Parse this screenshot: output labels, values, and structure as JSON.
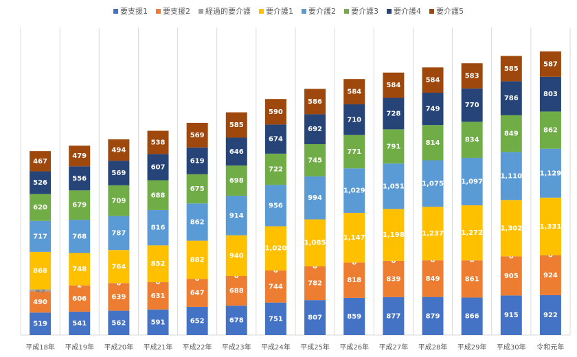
{
  "chart_data": {
    "type": "stacked_bar",
    "categories": [
      "平成18年",
      "平成19年",
      "平成20年",
      "平成21年",
      "平成22年",
      "平成23年",
      "平成24年",
      "平成25年",
      "平成26年",
      "平成27年",
      "平成28年",
      "平成29年",
      "平成30年",
      "令和元年"
    ],
    "ylim": [
      0,
      7000
    ],
    "grid": true,
    "legend": "top",
    "series": [
      {
        "name": "要支援1",
        "color": "#4472c4",
        "values": [
          519,
          541,
          562,
          591,
          652,
          678,
          751,
          807,
          859,
          877,
          879,
          866,
          915,
          922
        ]
      },
      {
        "name": "要支援2",
        "color": "#ed7d31",
        "values": [
          490,
          606,
          639,
          631,
          647,
          688,
          744,
          782,
          818,
          839,
          849,
          861,
          905,
          924
        ]
      },
      {
        "name": "経過的要介護",
        "color": "#a5a5a5",
        "values": [
          45,
          2,
          0,
          0,
          0,
          0,
          0,
          0,
          0,
          0,
          0,
          0,
          0,
          0
        ]
      },
      {
        "name": "要介護1",
        "color": "#ffc000",
        "values": [
          868,
          748,
          764,
          852,
          882,
          940,
          1020,
          1085,
          1147,
          1198,
          1237,
          1272,
          1302,
          1331
        ],
        "value_labels": [
          "868",
          "748",
          "764",
          "852",
          "882",
          "940",
          "1,020",
          "1,085",
          "1,147",
          "1,198",
          "1,237",
          "1,272",
          "1,302",
          "1,331"
        ]
      },
      {
        "name": "要介護2",
        "color": "#5b9bd5",
        "values": [
          717,
          768,
          787,
          816,
          862,
          914,
          956,
          994,
          1029,
          1051,
          1075,
          1097,
          1110,
          1129
        ],
        "value_labels": [
          "717",
          "768",
          "787",
          "816",
          "862",
          "914",
          "956",
          "994",
          "1,029",
          "1,051",
          "1,075",
          "1,097",
          "1,110",
          "1,129"
        ]
      },
      {
        "name": "要介護3",
        "color": "#70ad47",
        "values": [
          620,
          679,
          709,
          688,
          675,
          698,
          722,
          745,
          771,
          791,
          814,
          834,
          849,
          862
        ]
      },
      {
        "name": "要介護4",
        "color": "#264478",
        "values": [
          526,
          556,
          569,
          607,
          619,
          646,
          674,
          692,
          710,
          728,
          749,
          770,
          786,
          803
        ]
      },
      {
        "name": "要介護5",
        "color": "#9e480e",
        "values": [
          467,
          479,
          494,
          538,
          569,
          585,
          590,
          586,
          584,
          584,
          584,
          583,
          585,
          587
        ]
      }
    ]
  }
}
